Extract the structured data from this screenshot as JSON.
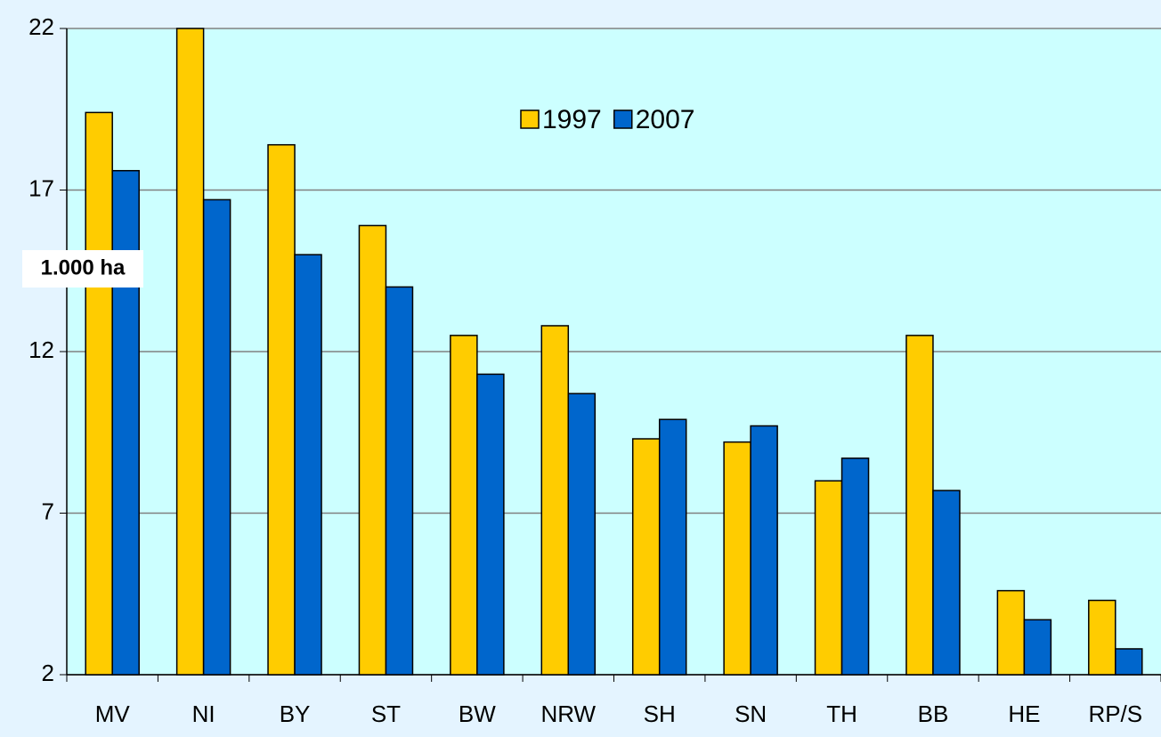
{
  "chart_data": {
    "type": "bar",
    "ylabel": "1.000 ha",
    "categories": [
      "MV",
      "NI",
      "BY",
      "ST",
      "BW",
      "NRW",
      "SH",
      "SN",
      "TH",
      "BB",
      "HE",
      "RP/S"
    ],
    "series": [
      {
        "name": "1997",
        "color": "#ffcc00",
        "values": [
          19.4,
          22,
          18.4,
          15.9,
          12.5,
          12.8,
          9.3,
          9.2,
          8.0,
          12.5,
          4.6,
          4.3
        ]
      },
      {
        "name": "2007",
        "color": "#0066cc",
        "values": [
          17.6,
          16.7,
          15.0,
          14.0,
          11.3,
          10.7,
          9.9,
          9.7,
          8.7,
          7.7,
          3.7,
          2.8
        ]
      }
    ],
    "ylim": [
      2,
      22
    ],
    "yticks": [
      2,
      7,
      12,
      17,
      22
    ],
    "grid": true
  }
}
